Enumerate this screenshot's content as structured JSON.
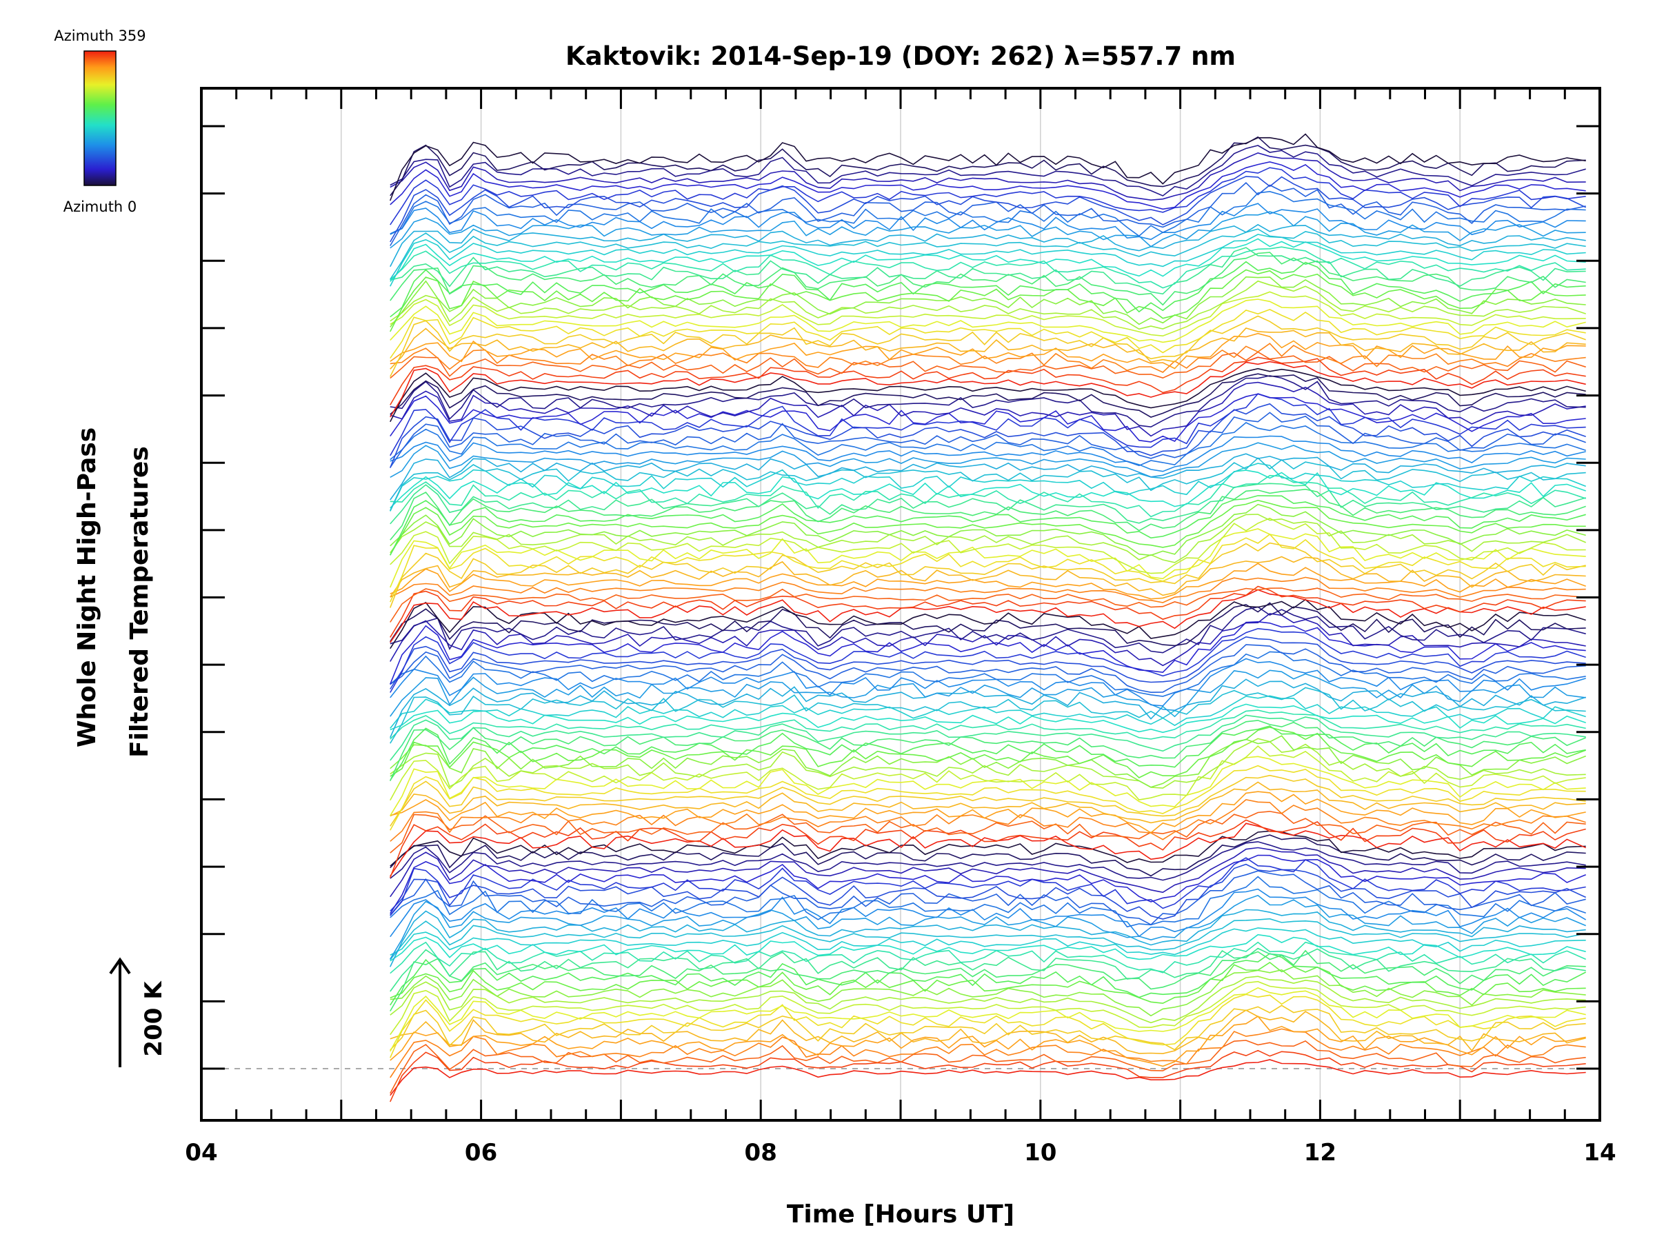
{
  "chart_data": {
    "type": "line",
    "title": "Kaktovik: 2014-Sep-19 (DOY: 262) λ=557.7 nm",
    "xlabel": "Time [Hours UT]",
    "ylabel_line1": "Whole Night High-Pass",
    "ylabel_line2": "Filtered Temperatures",
    "x_ticks": [
      {
        "value": 4,
        "label": "04"
      },
      {
        "value": 6,
        "label": "06"
      },
      {
        "value": 8,
        "label": "08"
      },
      {
        "value": 10,
        "label": "10"
      },
      {
        "value": 12,
        "label": "12"
      },
      {
        "value": 14,
        "label": "14"
      }
    ],
    "xlim": [
      4,
      14
    ],
    "gridlines_x": [
      5,
      6,
      7,
      8,
      9,
      10,
      11,
      12,
      13
    ],
    "data_start_hour": 5.35,
    "data_end_hour": 13.9,
    "n_series": 128,
    "series_offset_k": 50,
    "y_tick_count": 15,
    "scale_bar": {
      "label": "200 K"
    },
    "colorbar": {
      "top_label": "Azimuth 359",
      "bottom_label": "Azimuth 0",
      "min": 0,
      "max": 359,
      "colormap": "rainbow"
    },
    "baseline": "dashed"
  }
}
